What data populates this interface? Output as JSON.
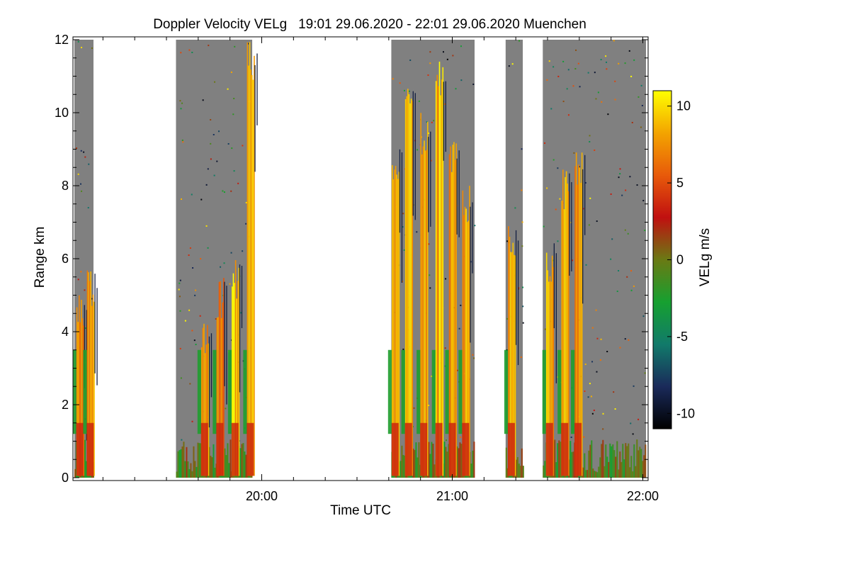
{
  "chart_data": {
    "type": "heatmap",
    "title": "Doppler Velocity VELg   19:01 29.06.2020 - 22:01 29.06.2020 Muenchen",
    "xlabel": "Time UTC",
    "ylabel": "Range km",
    "xlim_hours": [
      19.0167,
      22.0167
    ],
    "ylim": [
      0,
      12
    ],
    "x_ticks": [
      {
        "value": 20.0,
        "label": "20:00"
      },
      {
        "value": 21.0,
        "label": "21:00"
      },
      {
        "value": 22.0,
        "label": "22:00"
      }
    ],
    "y_ticks": [
      {
        "value": 0,
        "label": "0"
      },
      {
        "value": 2,
        "label": "2"
      },
      {
        "value": 4,
        "label": "4"
      },
      {
        "value": 6,
        "label": "6"
      },
      {
        "value": 8,
        "label": "8"
      },
      {
        "value": 10,
        "label": "10"
      },
      {
        "value": 12,
        "label": "12"
      }
    ],
    "colorbar": {
      "label": "VELg m/s",
      "range": [
        -11,
        11
      ],
      "ticks": [
        {
          "value": 10,
          "label": "10"
        },
        {
          "value": 5,
          "label": "5"
        },
        {
          "value": 0,
          "label": "0"
        },
        {
          "value": -5,
          "label": "-5"
        },
        {
          "value": -10,
          "label": "-10"
        }
      ],
      "colors": [
        "#000000",
        "#1a2a5a",
        "#117a6a",
        "#16a030",
        "#6a7a14",
        "#c01010",
        "#e85a0a",
        "#f3a400",
        "#ffff00"
      ]
    },
    "background_value_color": "#808080",
    "data_segments": [
      {
        "start": 19.0167,
        "end": 19.117
      },
      {
        "start": 19.55,
        "end": 19.95
      },
      {
        "start": 20.68,
        "end": 21.117
      },
      {
        "start": 21.28,
        "end": 21.37
      },
      {
        "start": 21.475,
        "end": 22.0167
      }
    ],
    "fall_streaks": [
      {
        "time": 19.045,
        "top_km": 5.0,
        "velocity": 7
      },
      {
        "time": 19.1,
        "top_km": 5.8,
        "velocity": 8
      },
      {
        "time": 19.7,
        "top_km": 4.5,
        "velocity": 8
      },
      {
        "time": 19.78,
        "top_km": 5.5,
        "velocity": 7
      },
      {
        "time": 19.86,
        "top_km": 6.0,
        "velocity": 9
      },
      {
        "time": 19.94,
        "top_km": 12.0,
        "velocity": 9
      },
      {
        "time": 20.7,
        "top_km": 9.0,
        "velocity": 9
      },
      {
        "time": 20.77,
        "top_km": 11.0,
        "velocity": 9
      },
      {
        "time": 20.85,
        "top_km": 10.0,
        "velocity": 8
      },
      {
        "time": 20.93,
        "top_km": 11.5,
        "velocity": 9
      },
      {
        "time": 21.0,
        "top_km": 9.5,
        "velocity": 8
      },
      {
        "time": 21.07,
        "top_km": 8.0,
        "velocity": 8
      },
      {
        "time": 21.31,
        "top_km": 7.0,
        "velocity": 8
      },
      {
        "time": 21.51,
        "top_km": 6.5,
        "velocity": 8
      },
      {
        "time": 21.59,
        "top_km": 8.5,
        "velocity": 8
      },
      {
        "time": 21.66,
        "top_km": 9.0,
        "velocity": 8
      }
    ]
  }
}
